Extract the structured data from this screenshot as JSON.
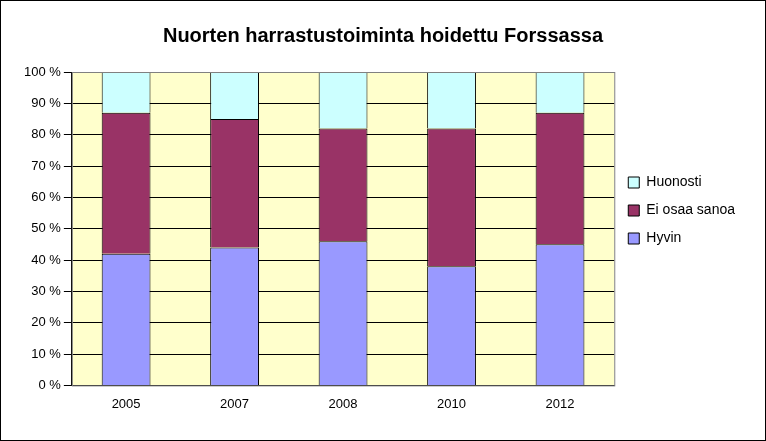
{
  "chart_data": {
    "type": "bar",
    "title": "Nuorten harrastustoiminta hoidettu Forssassa",
    "categories": [
      "2005",
      "2007",
      "2008",
      "2010",
      "2012"
    ],
    "series": [
      {
        "name": "Hyvin",
        "color": "#9999ff",
        "values": [
          42,
          44,
          46,
          38,
          45
        ]
      },
      {
        "name": "Ei osaa sanoa",
        "color": "#993366",
        "values": [
          45,
          41,
          36,
          44,
          42
        ]
      },
      {
        "name": "Huonosti",
        "color": "#ccffff",
        "values": [
          13,
          15,
          18,
          18,
          13
        ]
      }
    ],
    "stacked": true,
    "ylim": [
      0,
      100
    ],
    "yticks": [
      {
        "value": 0,
        "label": "0 %"
      },
      {
        "value": 10,
        "label": "10 %"
      },
      {
        "value": 20,
        "label": "20 %"
      },
      {
        "value": 30,
        "label": "30 %"
      },
      {
        "value": 40,
        "label": "40 %"
      },
      {
        "value": 50,
        "label": "50 %"
      },
      {
        "value": 60,
        "label": "60 %"
      },
      {
        "value": 70,
        "label": "70 %"
      },
      {
        "value": 80,
        "label": "80 %"
      },
      {
        "value": 90,
        "label": "90 %"
      },
      {
        "value": 100,
        "label": "100 %"
      }
    ],
    "grid": true,
    "legend": "right"
  }
}
